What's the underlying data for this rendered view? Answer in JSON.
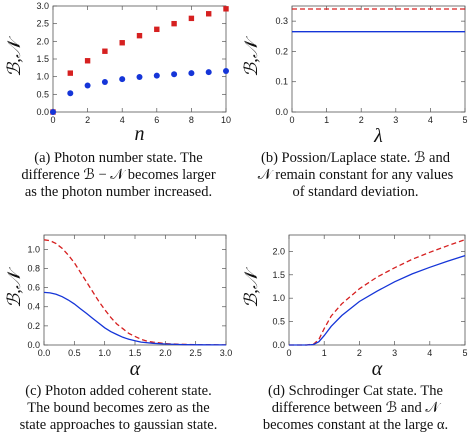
{
  "chart_data": [
    {
      "type": "scatter",
      "ylabel": "ℬ,𝒩",
      "xlabel": "n",
      "xlim": [
        0,
        10
      ],
      "ylim": [
        0,
        3.0
      ],
      "x_ticks": [
        0,
        2,
        4,
        6,
        8,
        10
      ],
      "y_ticks": [
        0.0,
        0.5,
        1.0,
        1.5,
        2.0,
        2.5,
        3.0
      ],
      "series": [
        {
          "color": "#d62020",
          "marker": "square",
          "points": [
            [
              0,
              0
            ],
            [
              1,
              1.1
            ],
            [
              2,
              1.45
            ],
            [
              3,
              1.72
            ],
            [
              4,
              1.96
            ],
            [
              5,
              2.16
            ],
            [
              6,
              2.34
            ],
            [
              7,
              2.5
            ],
            [
              8,
              2.65
            ],
            [
              9,
              2.78
            ],
            [
              10,
              2.92
            ]
          ]
        },
        {
          "color": "#1535d8",
          "marker": "circle",
          "points": [
            [
              0,
              0
            ],
            [
              1,
              0.53
            ],
            [
              2,
              0.75
            ],
            [
              3,
              0.85
            ],
            [
              4,
              0.93
            ],
            [
              5,
              0.99
            ],
            [
              6,
              1.03
            ],
            [
              7,
              1.07
            ],
            [
              8,
              1.1
            ],
            [
              9,
              1.13
            ],
            [
              10,
              1.16
            ]
          ]
        }
      ],
      "caption": [
        "(a) Photon number state. The",
        "difference ℬ − 𝒩 becomes larger",
        "as the photon number increased."
      ]
    },
    {
      "type": "line",
      "ylabel": "ℬ,𝒩",
      "xlabel": "λ",
      "xlim": [
        0,
        5
      ],
      "ylim": [
        0,
        0.35
      ],
      "x_ticks": [
        0,
        1,
        2,
        3,
        4,
        5
      ],
      "y_ticks": [
        0.0,
        0.1,
        0.2,
        0.3
      ],
      "series": [
        {
          "color": "#d62020",
          "dash": true,
          "points": [
            [
              0,
              0.34
            ],
            [
              5,
              0.34
            ]
          ]
        },
        {
          "color": "#1535d8",
          "dash": false,
          "points": [
            [
              0,
              0.265
            ],
            [
              5,
              0.265
            ]
          ]
        }
      ],
      "caption": [
        "(b) Possion/Laplace state. ℬ and",
        "𝒩 remain constant for any values",
        "of standard deviation."
      ]
    },
    {
      "type": "line",
      "ylabel": "ℬ,𝒩",
      "xlabel": "α",
      "xlim": [
        0,
        3.0
      ],
      "ylim": [
        0,
        1.15
      ],
      "x_ticks": [
        0.0,
        0.5,
        1.0,
        1.5,
        2.0,
        2.5,
        3.0
      ],
      "y_ticks": [
        0.0,
        0.2,
        0.4,
        0.6,
        0.8,
        1.0
      ],
      "series": [
        {
          "color": "#d62020",
          "dash": true,
          "points": [
            [
              0,
              1.1
            ],
            [
              0.1,
              1.09
            ],
            [
              0.2,
              1.06
            ],
            [
              0.3,
              1.01
            ],
            [
              0.4,
              0.94
            ],
            [
              0.5,
              0.86
            ],
            [
              0.6,
              0.76
            ],
            [
              0.7,
              0.66
            ],
            [
              0.8,
              0.56
            ],
            [
              0.9,
              0.46
            ],
            [
              1.0,
              0.37
            ],
            [
              1.1,
              0.29
            ],
            [
              1.2,
              0.22
            ],
            [
              1.3,
              0.17
            ],
            [
              1.4,
              0.12
            ],
            [
              1.5,
              0.09
            ],
            [
              1.6,
              0.06
            ],
            [
              1.7,
              0.04
            ],
            [
              1.8,
              0.03
            ],
            [
              2.0,
              0.015
            ],
            [
              2.2,
              0.008
            ],
            [
              2.5,
              0.003
            ],
            [
              3.0,
              0.001
            ]
          ]
        },
        {
          "color": "#1535d8",
          "dash": false,
          "points": [
            [
              0,
              0.55
            ],
            [
              0.1,
              0.545
            ],
            [
              0.2,
              0.53
            ],
            [
              0.3,
              0.505
            ],
            [
              0.4,
              0.47
            ],
            [
              0.5,
              0.43
            ],
            [
              0.6,
              0.38
            ],
            [
              0.7,
              0.33
            ],
            [
              0.8,
              0.28
            ],
            [
              0.9,
              0.23
            ],
            [
              1.0,
              0.18
            ],
            [
              1.1,
              0.14
            ],
            [
              1.2,
              0.11
            ],
            [
              1.3,
              0.08
            ],
            [
              1.4,
              0.06
            ],
            [
              1.5,
              0.045
            ],
            [
              1.6,
              0.03
            ],
            [
              1.8,
              0.018
            ],
            [
              2.0,
              0.01
            ],
            [
              2.3,
              0.004
            ],
            [
              2.6,
              0.002
            ],
            [
              3.0,
              0.001
            ]
          ]
        }
      ],
      "caption": [
        "(c) Photon added coherent state.",
        "The bound becomes zero as the",
        "state approaches to gaussian state."
      ]
    },
    {
      "type": "line",
      "ylabel": "ℬ,𝒩",
      "xlabel": "α",
      "xlim": [
        0,
        5
      ],
      "ylim": [
        0,
        2.35
      ],
      "x_ticks": [
        0,
        1,
        2,
        3,
        4,
        5
      ],
      "y_ticks": [
        0.0,
        0.5,
        1.0,
        1.5,
        2.0
      ],
      "series": [
        {
          "color": "#d62020",
          "dash": true,
          "points": [
            [
              0,
              0
            ],
            [
              0.5,
              0
            ],
            [
              0.7,
              0.02
            ],
            [
              0.85,
              0.12
            ],
            [
              1.0,
              0.35
            ],
            [
              1.2,
              0.62
            ],
            [
              1.5,
              0.88
            ],
            [
              2.0,
              1.2
            ],
            [
              2.5,
              1.45
            ],
            [
              3.0,
              1.65
            ],
            [
              3.5,
              1.83
            ],
            [
              4.0,
              1.98
            ],
            [
              4.5,
              2.12
            ],
            [
              5.0,
              2.25
            ]
          ]
        },
        {
          "color": "#1535d8",
          "dash": false,
          "points": [
            [
              0,
              0
            ],
            [
              0.5,
              0
            ],
            [
              0.7,
              0.01
            ],
            [
              0.85,
              0.07
            ],
            [
              1.0,
              0.2
            ],
            [
              1.2,
              0.4
            ],
            [
              1.5,
              0.63
            ],
            [
              2.0,
              0.93
            ],
            [
              2.5,
              1.15
            ],
            [
              3.0,
              1.35
            ],
            [
              3.5,
              1.52
            ],
            [
              4.0,
              1.66
            ],
            [
              4.5,
              1.79
            ],
            [
              5.0,
              1.91
            ]
          ]
        }
      ],
      "caption": [
        "(d) Schrodinger Cat state. The",
        "difference between ℬ and 𝒩",
        "becomes constant at the large α."
      ]
    }
  ]
}
